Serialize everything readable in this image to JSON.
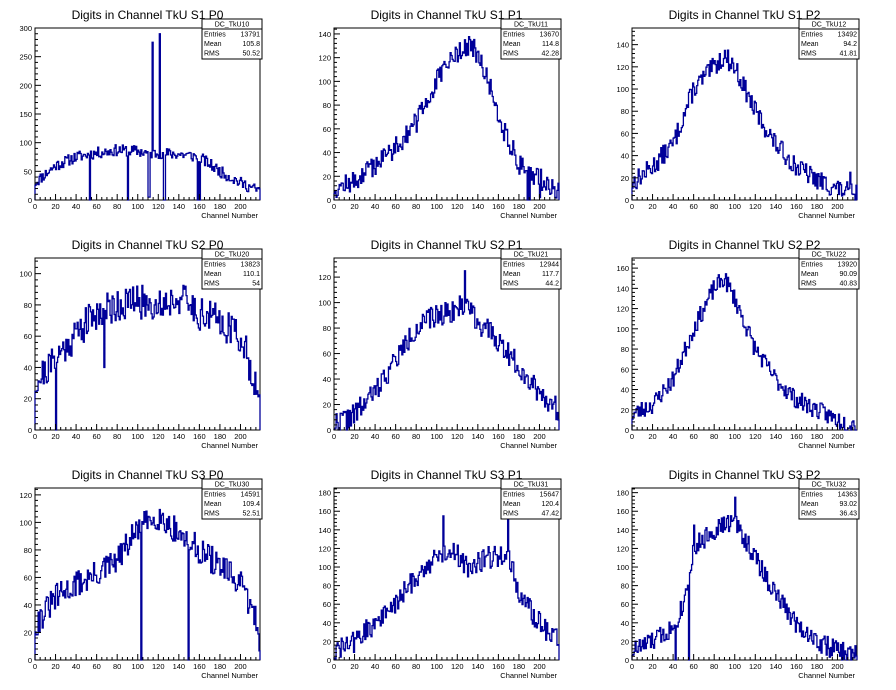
{
  "chart_data": [
    {
      "type": "histogram",
      "title": "Digits in Channel TkU S1 P0",
      "xlabel": "Channel Number",
      "xlim": [
        0,
        219
      ],
      "ylim": [
        0,
        300
      ],
      "xticks": [
        0,
        20,
        40,
        60,
        80,
        100,
        120,
        140,
        160,
        180,
        200
      ],
      "yticks": [
        0,
        50,
        100,
        150,
        200,
        250,
        300
      ],
      "stats": {
        "name": "DC_TkU10",
        "rows": [
          [
            "Entries",
            "13791"
          ],
          [
            "Mean",
            "105.8"
          ],
          [
            "RMS",
            "50.52"
          ]
        ]
      },
      "profile": [
        [
          0,
          30
        ],
        [
          10,
          45
        ],
        [
          20,
          60
        ],
        [
          40,
          75
        ],
        [
          60,
          82
        ],
        [
          80,
          87
        ],
        [
          100,
          85
        ],
        [
          110,
          82
        ],
        [
          140,
          80
        ],
        [
          160,
          75
        ],
        [
          180,
          50
        ],
        [
          200,
          30
        ],
        [
          219,
          15
        ]
      ],
      "spikes": [
        [
          53,
          0
        ],
        [
          90,
          0
        ],
        [
          110,
          5
        ],
        [
          111,
          5
        ],
        [
          114,
          275
        ],
        [
          121,
          290
        ],
        [
          125,
          0
        ],
        [
          126,
          0
        ],
        [
          158,
          0
        ],
        [
          160,
          0
        ]
      ],
      "noise": 10,
      "seed": 11
    },
    {
      "type": "histogram",
      "title": "Digits in Channel TkU S1 P1",
      "xlabel": "Channel Number",
      "xlim": [
        0,
        219
      ],
      "ylim": [
        0,
        145
      ],
      "xticks": [
        0,
        20,
        40,
        60,
        80,
        100,
        120,
        140,
        160,
        180,
        200
      ],
      "yticks": [
        0,
        20,
        40,
        60,
        80,
        100,
        120,
        140
      ],
      "stats": {
        "name": "DC_TkU11",
        "rows": [
          [
            "Entries",
            "13670"
          ],
          [
            "Mean",
            "114.8"
          ],
          [
            "RMS",
            "42.28"
          ]
        ]
      },
      "profile": [
        [
          0,
          10
        ],
        [
          20,
          15
        ],
        [
          40,
          30
        ],
        [
          60,
          45
        ],
        [
          80,
          65
        ],
        [
          100,
          100
        ],
        [
          120,
          125
        ],
        [
          135,
          130
        ],
        [
          150,
          100
        ],
        [
          165,
          60
        ],
        [
          180,
          30
        ],
        [
          200,
          18
        ],
        [
          219,
          8
        ]
      ],
      "spikes": [
        [
          188,
          0
        ],
        [
          190,
          0
        ],
        [
          200,
          2
        ]
      ],
      "noise": 9,
      "seed": 12
    },
    {
      "type": "histogram",
      "title": "Digits in Channel TkU S1 P2",
      "xlabel": "Channel Number",
      "xlim": [
        0,
        219
      ],
      "ylim": [
        0,
        155
      ],
      "xticks": [
        0,
        20,
        40,
        60,
        80,
        100,
        120,
        140,
        160,
        180,
        200
      ],
      "yticks": [
        0,
        20,
        40,
        60,
        80,
        100,
        120,
        140
      ],
      "stats": {
        "name": "DC_TkU12",
        "rows": [
          [
            "Entries",
            "13492"
          ],
          [
            "Mean",
            "94.2"
          ],
          [
            "RMS",
            "41.81"
          ]
        ]
      },
      "profile": [
        [
          0,
          15
        ],
        [
          20,
          30
        ],
        [
          40,
          50
        ],
        [
          60,
          100
        ],
        [
          80,
          120
        ],
        [
          90,
          130
        ],
        [
          100,
          120
        ],
        [
          120,
          80
        ],
        [
          140,
          50
        ],
        [
          160,
          30
        ],
        [
          180,
          18
        ],
        [
          200,
          10
        ],
        [
          219,
          5
        ]
      ],
      "spikes": [
        [
          212,
          25
        ],
        [
          215,
          5
        ]
      ],
      "noise": 9,
      "seed": 13
    },
    {
      "type": "histogram",
      "title": "Digits in Channel TkU S2 P0",
      "xlabel": "Channel Number",
      "xlim": [
        0,
        219
      ],
      "ylim": [
        0,
        110
      ],
      "xticks": [
        0,
        20,
        40,
        60,
        80,
        100,
        120,
        140,
        160,
        180,
        200
      ],
      "yticks": [
        0,
        20,
        40,
        60,
        80,
        100
      ],
      "stats": {
        "name": "DC_TkU20",
        "rows": [
          [
            "Entries",
            "13823"
          ],
          [
            "Mean",
            "110.1"
          ],
          [
            "RMS",
            "54"
          ]
        ]
      },
      "profile": [
        [
          0,
          30
        ],
        [
          20,
          45
        ],
        [
          40,
          62
        ],
        [
          60,
          75
        ],
        [
          80,
          80
        ],
        [
          100,
          82
        ],
        [
          120,
          80
        ],
        [
          140,
          85
        ],
        [
          160,
          75
        ],
        [
          180,
          70
        ],
        [
          200,
          60
        ],
        [
          215,
          30
        ],
        [
          219,
          10
        ]
      ],
      "spikes": [
        [
          20,
          0
        ],
        [
          67,
          40
        ]
      ],
      "noise": 11,
      "seed": 21
    },
    {
      "type": "histogram",
      "title": "Digits in Channel TkU S2 P1",
      "xlabel": "Channel Number",
      "xlim": [
        0,
        219
      ],
      "ylim": [
        0,
        135
      ],
      "xticks": [
        0,
        20,
        40,
        60,
        80,
        100,
        120,
        140,
        160,
        180,
        200
      ],
      "yticks": [
        0,
        20,
        40,
        60,
        80,
        100,
        120
      ],
      "stats": {
        "name": "DC_TkU21",
        "rows": [
          [
            "Entries",
            "12944"
          ],
          [
            "Mean",
            "117.7"
          ],
          [
            "RMS",
            "44.2"
          ]
        ]
      },
      "profile": [
        [
          0,
          5
        ],
        [
          20,
          12
        ],
        [
          40,
          30
        ],
        [
          60,
          55
        ],
        [
          80,
          80
        ],
        [
          100,
          90
        ],
        [
          120,
          95
        ],
        [
          130,
          100
        ],
        [
          140,
          85
        ],
        [
          160,
          70
        ],
        [
          180,
          50
        ],
        [
          200,
          30
        ],
        [
          219,
          15
        ]
      ],
      "spikes": [
        [
          5,
          0
        ],
        [
          12,
          0
        ],
        [
          127,
          125
        ]
      ],
      "noise": 9,
      "seed": 22
    },
    {
      "type": "histogram",
      "title": "Digits in Channel TkU S2 P2",
      "xlabel": "Channel Number",
      "xlim": [
        0,
        219
      ],
      "ylim": [
        0,
        170
      ],
      "xticks": [
        0,
        20,
        40,
        60,
        80,
        100,
        120,
        140,
        160,
        180,
        200
      ],
      "yticks": [
        0,
        20,
        40,
        60,
        80,
        100,
        120,
        140,
        160
      ],
      "stats": {
        "name": "DC_TkU22",
        "rows": [
          [
            "Entries",
            "13920"
          ],
          [
            "Mean",
            "90.09"
          ],
          [
            "RMS",
            "40.83"
          ]
        ]
      },
      "profile": [
        [
          0,
          15
        ],
        [
          20,
          25
        ],
        [
          40,
          50
        ],
        [
          60,
          100
        ],
        [
          80,
          140
        ],
        [
          90,
          150
        ],
        [
          100,
          130
        ],
        [
          120,
          80
        ],
        [
          140,
          50
        ],
        [
          160,
          30
        ],
        [
          180,
          20
        ],
        [
          200,
          10
        ],
        [
          219,
          5
        ]
      ],
      "spikes": [],
      "noise": 9,
      "seed": 23
    },
    {
      "type": "histogram",
      "title": "Digits in Channel TkU S3 P0",
      "xlabel": "Channel Number",
      "xlim": [
        0,
        219
      ],
      "ylim": [
        0,
        125
      ],
      "xticks": [
        0,
        20,
        40,
        60,
        80,
        100,
        120,
        140,
        160,
        180,
        200
      ],
      "yticks": [
        0,
        20,
        40,
        60,
        80,
        100,
        120
      ],
      "stats": {
        "name": "DC_TkU30",
        "rows": [
          [
            "Entries",
            "14591"
          ],
          [
            "Mean",
            "109.4"
          ],
          [
            "RMS",
            "52.51"
          ]
        ]
      },
      "profile": [
        [
          0,
          25
        ],
        [
          20,
          45
        ],
        [
          40,
          55
        ],
        [
          60,
          62
        ],
        [
          80,
          72
        ],
        [
          100,
          95
        ],
        [
          120,
          105
        ],
        [
          140,
          92
        ],
        [
          160,
          80
        ],
        [
          180,
          68
        ],
        [
          200,
          55
        ],
        [
          215,
          30
        ],
        [
          219,
          10
        ]
      ],
      "spikes": [
        [
          103,
          0
        ],
        [
          149,
          0
        ]
      ],
      "noise": 10,
      "seed": 31
    },
    {
      "type": "histogram",
      "title": "Digits in Channel TkU S3 P1",
      "xlabel": "Channel Number",
      "xlim": [
        0,
        219
      ],
      "ylim": [
        0,
        185
      ],
      "xticks": [
        0,
        20,
        40,
        60,
        80,
        100,
        120,
        140,
        160,
        180,
        200
      ],
      "yticks": [
        0,
        20,
        40,
        60,
        80,
        100,
        120,
        140,
        160,
        180
      ],
      "stats": {
        "name": "DC_TkU31",
        "rows": [
          [
            "Entries",
            "15647"
          ],
          [
            "Mean",
            "120.4"
          ],
          [
            "RMS",
            "47.42"
          ]
        ]
      },
      "profile": [
        [
          0,
          8
        ],
        [
          20,
          20
        ],
        [
          40,
          40
        ],
        [
          60,
          60
        ],
        [
          80,
          90
        ],
        [
          100,
          110
        ],
        [
          115,
          120
        ],
        [
          130,
          100
        ],
        [
          150,
          110
        ],
        [
          170,
          115
        ],
        [
          180,
          70
        ],
        [
          200,
          40
        ],
        [
          219,
          20
        ]
      ],
      "spikes": [
        [
          106,
          155
        ],
        [
          169,
          165
        ]
      ],
      "noise": 12,
      "seed": 32
    },
    {
      "type": "histogram",
      "title": "Digits in Channel TkU S3 P2",
      "xlabel": "Channel Number",
      "xlim": [
        0,
        219
      ],
      "ylim": [
        0,
        185
      ],
      "xticks": [
        0,
        20,
        40,
        60,
        80,
        100,
        120,
        140,
        160,
        180,
        200
      ],
      "yticks": [
        0,
        20,
        40,
        60,
        80,
        100,
        120,
        140,
        160,
        180
      ],
      "stats": {
        "name": "DC_TkU32",
        "rows": [
          [
            "Entries",
            "14363"
          ],
          [
            "Mean",
            "93.02"
          ],
          [
            "RMS",
            "36.43"
          ]
        ]
      },
      "profile": [
        [
          0,
          10
        ],
        [
          20,
          20
        ],
        [
          40,
          35
        ],
        [
          50,
          60
        ],
        [
          60,
          120
        ],
        [
          80,
          140
        ],
        [
          100,
          150
        ],
        [
          120,
          110
        ],
        [
          140,
          70
        ],
        [
          160,
          40
        ],
        [
          180,
          20
        ],
        [
          200,
          10
        ],
        [
          219,
          5
        ]
      ],
      "spikes": [
        [
          42,
          0
        ],
        [
          55,
          0
        ],
        [
          60,
          145
        ],
        [
          100,
          175
        ]
      ],
      "noise": 11,
      "seed": 33
    }
  ]
}
